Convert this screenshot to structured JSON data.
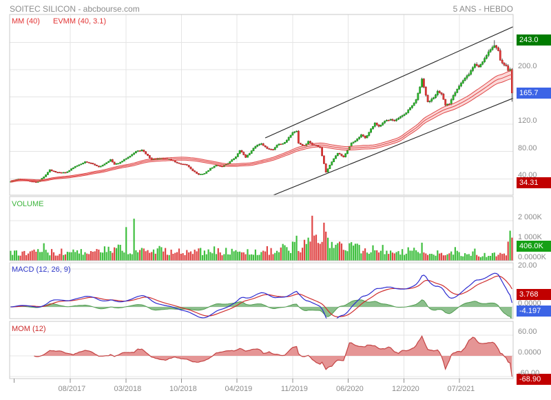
{
  "header": {
    "title": "SOITEC SILICON - abcbourse.com",
    "range_label": "5 ANS - HEBDO"
  },
  "price_panel": {
    "overlay_labels": [
      {
        "label": "MM (40)",
        "color": "#e23333"
      },
      {
        "label": "EVMM (40, 3.1)",
        "color": "#e23333"
      }
    ],
    "axis_labels": [
      {
        "text": "200.0",
        "value": 200
      },
      {
        "text": "120.0",
        "value": 120
      },
      {
        "text": "80.00",
        "value": 80
      },
      {
        "text": "40.00",
        "value": 40
      }
    ],
    "badges": [
      {
        "id": "period-high",
        "label": "243.0",
        "value": 243.0,
        "color": "#007c00"
      },
      {
        "id": "last-price",
        "label": "165.7",
        "value": 165.7,
        "color": "#3c64e6"
      },
      {
        "id": "period-low",
        "label": "34.31",
        "value": 34.31,
        "color": "#c10000"
      }
    ]
  },
  "volume_panel": {
    "label": "VOLUME",
    "label_color": "#3cb43c",
    "axis_labels": [
      {
        "text": "2 000K",
        "value": 2000
      },
      {
        "text": "1 000K",
        "value": 1000
      },
      {
        "text": "0.0000K",
        "value": 0
      }
    ],
    "badge": {
      "label": "406.0K",
      "value": 406.0,
      "color": "#16a016"
    }
  },
  "macd_panel": {
    "label": "MACD (12, 26, 9)",
    "label_color": "#2d36c8",
    "axis_labels": [
      {
        "text": "20.00",
        "value": 20
      },
      {
        "text": "0.0000",
        "value": 0
      }
    ],
    "badges": [
      {
        "id": "macd-signal",
        "label": "3.768",
        "value": 3.768,
        "color": "#c10000"
      },
      {
        "id": "macd-line",
        "label": "-4.197",
        "value": -4.197,
        "color": "#3c64e6"
      }
    ]
  },
  "mom_panel": {
    "label": "MOM (12)",
    "label_color": "#cc2a2a",
    "axis_labels": [
      {
        "text": "60.00",
        "value": 60
      },
      {
        "text": "0.0000",
        "value": 0
      },
      {
        "text": "-60.00",
        "value": -60
      }
    ],
    "badge": {
      "label": "-68.90",
      "value": -68.9,
      "color": "#c10000"
    }
  },
  "x_axis": {
    "ticks": [
      {
        "label": "08/2017",
        "week": 30.4
      },
      {
        "label": "03/2018",
        "week": 58.9
      },
      {
        "label": "10/2018",
        "week": 87.2
      },
      {
        "label": "04/2019",
        "week": 115.5
      },
      {
        "label": "11/2019",
        "week": 144.0
      },
      {
        "label": "06/2020",
        "week": 172.3
      },
      {
        "label": "12/2020",
        "week": 200.8
      },
      {
        "label": "07/2021",
        "week": 229.1
      }
    ],
    "extra_tick_weeks": [
      1.8
    ]
  },
  "chart_data": {
    "type": "candlestick",
    "instrument": "SOITEC SILICON",
    "period": "5 ANS",
    "interval": "HEBDO",
    "weeks": 257,
    "close_anchors": [
      [
        0,
        36
      ],
      [
        4,
        40
      ],
      [
        9,
        37
      ],
      [
        13,
        35
      ],
      [
        14,
        36
      ],
      [
        17,
        43
      ],
      [
        20,
        53
      ],
      [
        23,
        50
      ],
      [
        28,
        49
      ],
      [
        33,
        58
      ],
      [
        38,
        65
      ],
      [
        42,
        62
      ],
      [
        45,
        57
      ],
      [
        48,
        62
      ],
      [
        51,
        68
      ],
      [
        53,
        61
      ],
      [
        56,
        64
      ],
      [
        60,
        72
      ],
      [
        64,
        80
      ],
      [
        67,
        82
      ],
      [
        70,
        74
      ],
      [
        72,
        68
      ],
      [
        76,
        70
      ],
      [
        81,
        69
      ],
      [
        86,
        62
      ],
      [
        90,
        60
      ],
      [
        93,
        52
      ],
      [
        96,
        46
      ],
      [
        99,
        48
      ],
      [
        102,
        55
      ],
      [
        105,
        60
      ],
      [
        108,
        58
      ],
      [
        111,
        63
      ],
      [
        115,
        72
      ],
      [
        117,
        82
      ],
      [
        120,
        72
      ],
      [
        122,
        77
      ],
      [
        125,
        88
      ],
      [
        128,
        92
      ],
      [
        131,
        84
      ],
      [
        134,
        83
      ],
      [
        136,
        90
      ],
      [
        139,
        91
      ],
      [
        141,
        97
      ],
      [
        144,
        108
      ],
      [
        146,
        110
      ],
      [
        147,
        92
      ],
      [
        150,
        88
      ],
      [
        152,
        95
      ],
      [
        154,
        90
      ],
      [
        156,
        89
      ],
      [
        158,
        86
      ],
      [
        160,
        62
      ],
      [
        161,
        50
      ],
      [
        163,
        60
      ],
      [
        165,
        70
      ],
      [
        167,
        78
      ],
      [
        170,
        72
      ],
      [
        172,
        82
      ],
      [
        174,
        92
      ],
      [
        177,
        98
      ],
      [
        179,
        104
      ],
      [
        181,
        100
      ],
      [
        183,
        108
      ],
      [
        186,
        122
      ],
      [
        188,
        116
      ],
      [
        191,
        124
      ],
      [
        194,
        128
      ],
      [
        196,
        125
      ],
      [
        199,
        130
      ],
      [
        202,
        136
      ],
      [
        204,
        144
      ],
      [
        207,
        155
      ],
      [
        209,
        175
      ],
      [
        210,
        185
      ],
      [
        212,
        163
      ],
      [
        213,
        152
      ],
      [
        216,
        160
      ],
      [
        218,
        168
      ],
      [
        220,
        163
      ],
      [
        222,
        148
      ],
      [
        224,
        150
      ],
      [
        226,
        163
      ],
      [
        228,
        172
      ],
      [
        230,
        180
      ],
      [
        233,
        190
      ],
      [
        235,
        198
      ],
      [
        237,
        208
      ],
      [
        239,
        204
      ],
      [
        241,
        212
      ],
      [
        243,
        222
      ],
      [
        245,
        230
      ],
      [
        247,
        235
      ],
      [
        249,
        228
      ],
      [
        250,
        215
      ],
      [
        252,
        208
      ],
      [
        254,
        200
      ],
      [
        255,
        199
      ],
      [
        256,
        165.7
      ]
    ],
    "volume_anchors_k": [
      [
        0,
        320
      ],
      [
        20,
        400
      ],
      [
        40,
        380
      ],
      [
        55,
        520
      ],
      [
        70,
        480
      ],
      [
        90,
        420
      ],
      [
        110,
        400
      ],
      [
        130,
        450
      ],
      [
        145,
        600
      ],
      [
        155,
        700
      ],
      [
        165,
        750
      ],
      [
        180,
        550
      ],
      [
        195,
        480
      ],
      [
        210,
        420
      ],
      [
        225,
        340
      ],
      [
        240,
        270
      ],
      [
        250,
        300
      ],
      [
        256,
        350
      ]
    ],
    "volume_spikes_k": {
      "59": 1680,
      "63": 2100,
      "144": 950,
      "146": 1250,
      "152": 1150,
      "154": 2250,
      "156": 1300,
      "160": 1900,
      "161": 1450,
      "168": 950,
      "176": 850,
      "210": 900,
      "227": 680,
      "254": 950,
      "255": 1500,
      "256": 1150
    },
    "indicators": {
      "mm_period": 40,
      "evmm": {
        "period": 40,
        "percent": 3.1
      },
      "macd": {
        "fast": 12,
        "slow": 26,
        "signal": 9
      },
      "mom_period": 12
    },
    "last_values": {
      "price": 165.7,
      "volume_k": 406.0,
      "macd_signal": 3.768,
      "macd": -4.197,
      "mom": -68.9
    },
    "period_high": 243.0,
    "period_low": 34.31,
    "price_gridlines": [
      40,
      80,
      120,
      160,
      200,
      240
    ],
    "volume_gridlines_k": [
      1000,
      2000
    ],
    "macd_gridlines": [
      0,
      20
    ],
    "mom_gridlines": [
      -60,
      0,
      60
    ],
    "trendlines_price": [
      {
        "w1": 130.0,
        "p1": 99.9,
        "w2": 257.2,
        "p2": 263.5
      },
      {
        "w1": 132.4,
        "p1": 14.0,
        "w2": 256.9,
        "p2": 158.5
      }
    ],
    "colors": {
      "candle_up": "#2cb52c",
      "candle_up_edge": "#1d8f1d",
      "candle_down": "#e03c3c",
      "candle_down_edge": "#b52020",
      "wick": "#3a3a3a",
      "volume_up": "#3fbf3f",
      "volume_down": "#e04545",
      "envelope_line": "#e04848",
      "envelope_fill": "rgba(242,120,120,0.28)",
      "trendline": "#222222",
      "macd_line": "#2b2bd0",
      "macd_signal": "#cf2f2f",
      "macd_hist_fill": "#7fb87f",
      "macd_hist_edge": "#4f9b4f",
      "mom_fill": "#e59595",
      "mom_edge": "#c34343",
      "grid": "#e4e4e4",
      "panel_border": "#c8c8c8",
      "axis_text": "#8c8c8c"
    }
  }
}
